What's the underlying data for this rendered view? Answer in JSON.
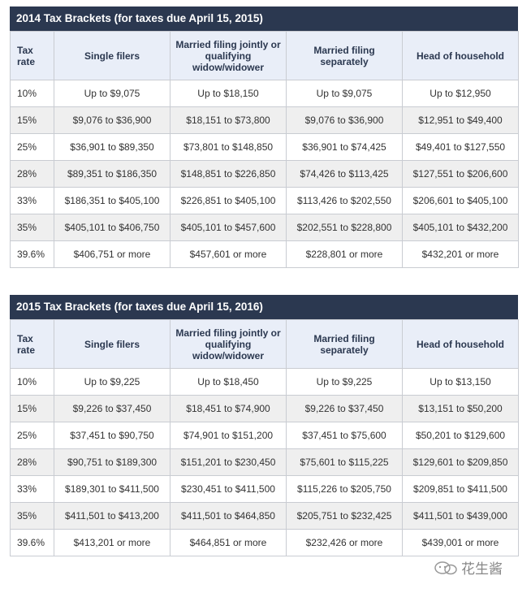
{
  "tables": [
    {
      "title": "2014 Tax Brackets (for taxes due April 15, 2015)",
      "headers": [
        "Tax rate",
        "Single filers",
        "Married filing jointly or qualifying widow/widower",
        "Married filing separately",
        "Head of household"
      ],
      "rows": [
        [
          "10%",
          "Up to $9,075",
          "Up to $18,150",
          "Up to $9,075",
          "Up to $12,950"
        ],
        [
          "15%",
          "$9,076 to $36,900",
          "$18,151 to $73,800",
          "$9,076 to $36,900",
          "$12,951 to $49,400"
        ],
        [
          "25%",
          "$36,901 to $89,350",
          "$73,801 to $148,850",
          "$36,901 to $74,425",
          "$49,401 to $127,550"
        ],
        [
          "28%",
          "$89,351 to $186,350",
          "$148,851 to $226,850",
          "$74,426 to $113,425",
          "$127,551 to $206,600"
        ],
        [
          "33%",
          "$186,351 to $405,100",
          "$226,851 to $405,100",
          "$113,426 to $202,550",
          "$206,601 to $405,100"
        ],
        [
          "35%",
          "$405,101 to $406,750",
          "$405,101 to $457,600",
          "$202,551 to $228,800",
          "$405,101 to $432,200"
        ],
        [
          "39.6%",
          "$406,751 or more",
          "$457,601 or more",
          "$228,801 or more",
          "$432,201 or more"
        ]
      ]
    },
    {
      "title": "2015 Tax Brackets (for taxes due April 15, 2016)",
      "headers": [
        "Tax rate",
        "Single filers",
        "Married filing jointly or qualifying widow/widower",
        "Married filing separately",
        "Head of household"
      ],
      "rows": [
        [
          "10%",
          "Up to $9,225",
          "Up to $18,450",
          "Up to $9,225",
          "Up to $13,150"
        ],
        [
          "15%",
          "$9,226 to $37,450",
          "$18,451 to $74,900",
          "$9,226 to $37,450",
          "$13,151 to $50,200"
        ],
        [
          "25%",
          "$37,451 to $90,750",
          "$74,901 to $151,200",
          "$37,451 to $75,600",
          "$50,201 to $129,600"
        ],
        [
          "28%",
          "$90,751 to $189,300",
          "$151,201 to $230,450",
          "$75,601 to $115,225",
          "$129,601 to $209,850"
        ],
        [
          "33%",
          "$189,301 to $411,500",
          "$230,451 to $411,500",
          "$115,226 to $205,750",
          "$209,851 to $411,500"
        ],
        [
          "35%",
          "$411,501 to $413,200",
          "$411,501 to $464,850",
          "$205,751 to $232,425",
          "$411,501 to $439,000"
        ],
        [
          "39.6%",
          "$413,201 or more",
          "$464,851 or more",
          "$232,426 or more",
          "$439,001 or more"
        ]
      ]
    }
  ],
  "watermark": "花生酱"
}
